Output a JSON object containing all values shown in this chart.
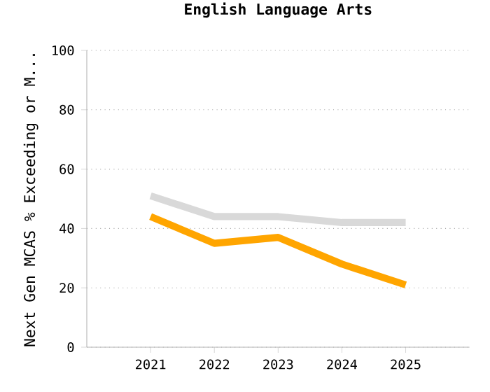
{
  "chart_data": {
    "type": "line",
    "title": "English Language Arts",
    "ylabel": "Next Gen MCAS % Exceeding or M...",
    "x": [
      2021,
      2022,
      2023,
      2024,
      2025
    ],
    "series": [
      {
        "color": "#d9d9d9",
        "values": [
          51,
          44,
          44,
          42,
          42
        ]
      },
      {
        "color": "#ffa500",
        "values": [
          44,
          35,
          37,
          28,
          21
        ]
      }
    ],
    "xlim": [
      2020,
      2026
    ],
    "xticks": [
      2021,
      2022,
      2023,
      2024,
      2025
    ],
    "ylim": [
      0,
      100
    ],
    "yticks": [
      0,
      20,
      40,
      60,
      80,
      100
    ],
    "grid": "y",
    "marker": "none",
    "line_style": "solid"
  }
}
